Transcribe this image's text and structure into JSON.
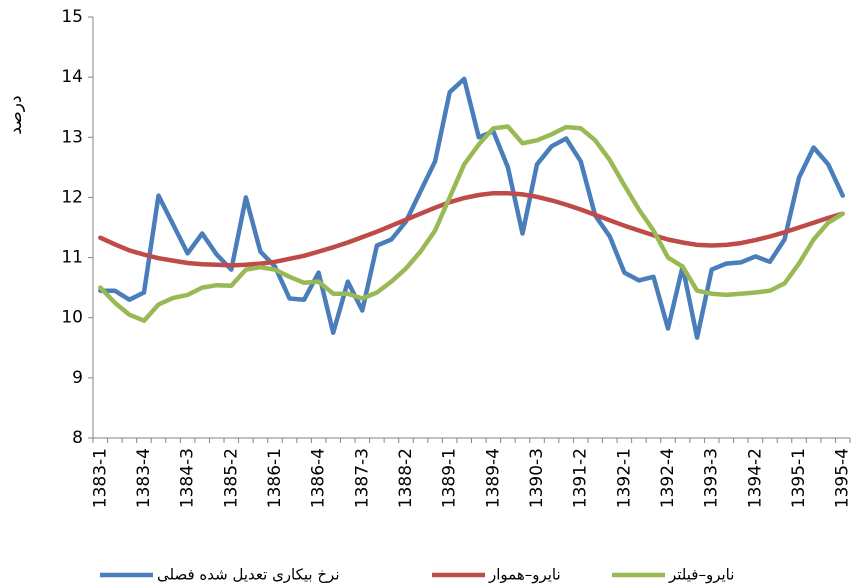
{
  "chart_data": {
    "type": "line",
    "y_label": "درصد",
    "categories": [
      "1383-1",
      null,
      null,
      "1383-4",
      null,
      null,
      "1384-3",
      null,
      null,
      "1385-2",
      null,
      null,
      "1386-1",
      null,
      null,
      "1386-4",
      null,
      null,
      "1387-3",
      null,
      null,
      "1388-2",
      null,
      null,
      "1389-1",
      null,
      null,
      "1389-4",
      null,
      null,
      "1390-3",
      null,
      null,
      "1391-2",
      null,
      null,
      "1392-1",
      null,
      null,
      "1392-4",
      null,
      null,
      "1393-3",
      null,
      null,
      "1394-2",
      null,
      null,
      "1395-1",
      null,
      null,
      "1395-4"
    ],
    "series": [
      {
        "name": "نرخ بیکاری تعدیل شده فصلی",
        "color": "#4a7ebb",
        "values": [
          10.45,
          10.45,
          10.3,
          10.42,
          12.03,
          11.55,
          11.07,
          11.4,
          11.05,
          10.8,
          12.0,
          11.1,
          10.85,
          10.32,
          10.3,
          10.75,
          9.75,
          10.6,
          10.12,
          11.2,
          11.3,
          11.6,
          12.1,
          12.6,
          13.75,
          13.97,
          13.0,
          13.1,
          12.5,
          11.4,
          12.55,
          12.85,
          12.98,
          12.6,
          11.7,
          11.35,
          10.75,
          10.62,
          10.68,
          9.82,
          10.85,
          9.67,
          10.8,
          10.9,
          10.92,
          11.02,
          10.93,
          11.3,
          12.33,
          12.83,
          12.55,
          12.03
        ]
      },
      {
        "name": "نایرو–هموار",
        "color": "#be4b48",
        "values": [
          11.33,
          11.22,
          11.12,
          11.05,
          10.99,
          10.95,
          10.91,
          10.89,
          10.88,
          10.87,
          10.88,
          10.9,
          10.93,
          10.98,
          11.03,
          11.1,
          11.17,
          11.25,
          11.34,
          11.43,
          11.53,
          11.63,
          11.73,
          11.83,
          11.92,
          11.99,
          12.04,
          12.07,
          12.07,
          12.05,
          12.01,
          11.95,
          11.88,
          11.8,
          11.71,
          11.62,
          11.53,
          11.45,
          11.37,
          11.3,
          11.25,
          11.21,
          11.2,
          11.21,
          11.24,
          11.29,
          11.35,
          11.42,
          11.5,
          11.58,
          11.66,
          11.73
        ]
      },
      {
        "name": "نایرو–فیلتر",
        "color": "#98b954",
        "values": [
          10.5,
          10.25,
          10.05,
          9.95,
          10.22,
          10.33,
          10.38,
          10.5,
          10.54,
          10.53,
          10.8,
          10.84,
          10.8,
          10.68,
          10.58,
          10.6,
          10.4,
          10.4,
          10.32,
          10.42,
          10.6,
          10.82,
          11.1,
          11.45,
          12.0,
          12.55,
          12.88,
          13.15,
          13.18,
          12.9,
          12.95,
          13.05,
          13.17,
          13.15,
          12.95,
          12.62,
          12.2,
          11.8,
          11.45,
          11.0,
          10.85,
          10.45,
          10.4,
          10.38,
          10.4,
          10.42,
          10.45,
          10.57,
          10.9,
          11.3,
          11.58,
          11.73
        ]
      }
    ],
    "ylim": [
      8,
      15
    ],
    "yticks": [
      8,
      9,
      10,
      11,
      12,
      13,
      14,
      15
    ],
    "grid": false
  }
}
